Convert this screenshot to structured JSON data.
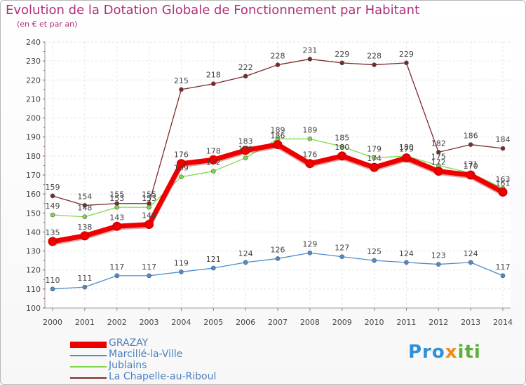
{
  "chart_data": {
    "type": "line",
    "title": "Evolution de la Dotation Globale de Fonctionnement par Habitant",
    "subtitle": "(en € et par an)",
    "xlabel": "",
    "ylabel": "",
    "ylim": [
      100,
      240
    ],
    "yticks": [
      100,
      110,
      120,
      130,
      140,
      150,
      160,
      170,
      180,
      190,
      200,
      210,
      220,
      230,
      240
    ],
    "categories": [
      "2000",
      "2001",
      "2002",
      "2003",
      "2004",
      "2005",
      "2006",
      "2007",
      "2008",
      "2009",
      "2010",
      "2011",
      "2012",
      "2013",
      "2014"
    ],
    "grid": true,
    "legend_position": "bottom-left",
    "series": [
      {
        "name": "GRAZAY",
        "color": "#ee0000",
        "values": [
          135,
          138,
          143,
          144,
          176,
          178,
          183,
          186,
          176,
          180,
          174,
          179,
          172,
          170,
          161
        ],
        "labels": [
          "135",
          "138",
          "143",
          "144",
          "176",
          "178",
          "183",
          "186",
          "176",
          "180",
          "174",
          "179",
          "172",
          "170",
          "161"
        ]
      },
      {
        "name": "Marcillé-la-Ville",
        "color": "#4a8ccf",
        "values": [
          110,
          111,
          117,
          117,
          119,
          121,
          124,
          126,
          129,
          127,
          125,
          124,
          123,
          124,
          117
        ],
        "labels": [
          "110",
          "111",
          "117",
          "117",
          "119",
          "121",
          "124",
          "126",
          "129",
          "127",
          "125",
          "124",
          "123",
          "124",
          "117"
        ]
      },
      {
        "name": "Jublains",
        "color": "#7ed84a",
        "values": [
          149,
          148,
          153,
          153,
          169,
          172,
          179,
          189,
          189,
          185,
          179,
          180,
          175,
          171,
          163
        ],
        "labels": [
          "149",
          "148",
          "153",
          "153",
          "169",
          "172",
          "179",
          "189",
          "189",
          "185",
          "179",
          "180",
          "175",
          "171",
          "163"
        ]
      },
      {
        "name": "La Chapelle-au-Riboul",
        "color": "#7a2a2a",
        "values": [
          159,
          154,
          155,
          155,
          215,
          218,
          222,
          228,
          231,
          229,
          228,
          229,
          182,
          186,
          184
        ],
        "labels": [
          "159",
          "154",
          "155",
          "155",
          "215",
          "218",
          "222",
          "228",
          "231",
          "229",
          "228",
          "229",
          "182",
          "186",
          "184"
        ]
      }
    ]
  },
  "logo": {
    "part1": "Pro",
    "part2": "x",
    "part3": "iti"
  }
}
